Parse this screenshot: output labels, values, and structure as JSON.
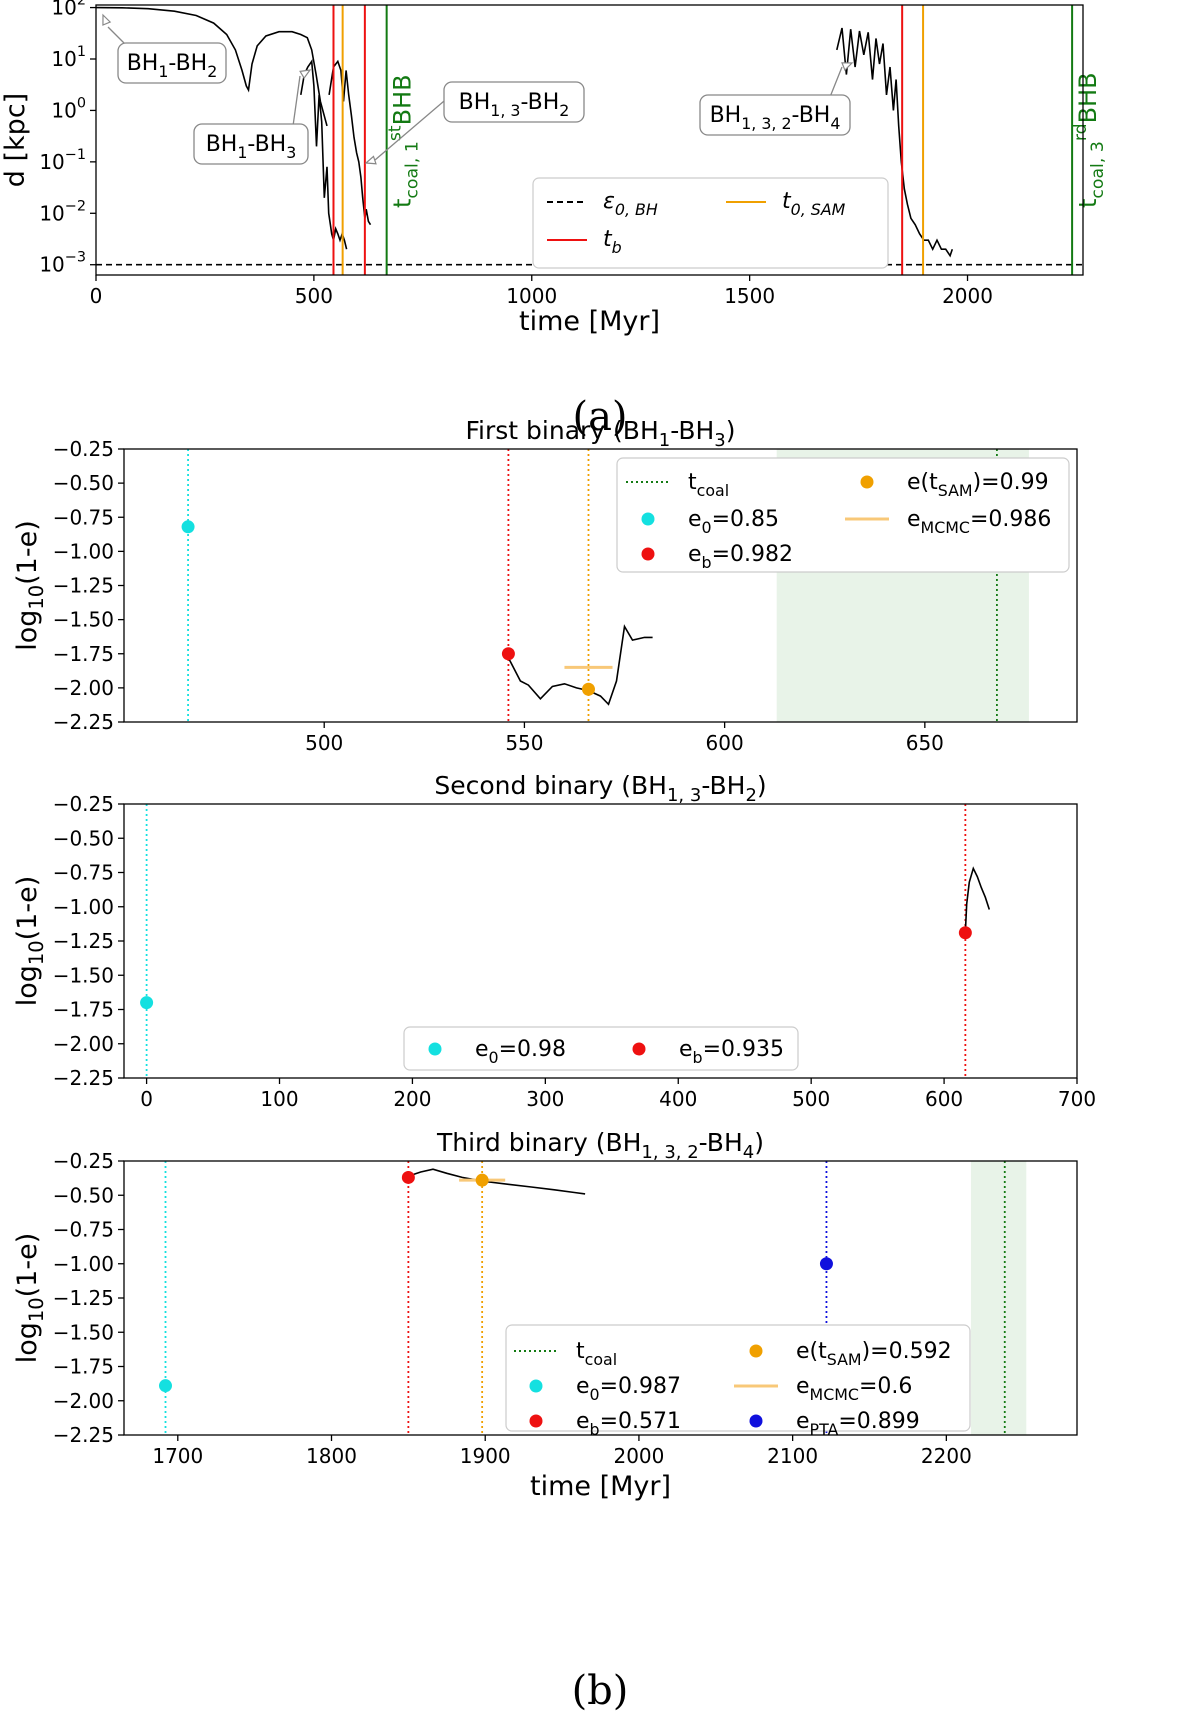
{
  "captions": [
    "(a)",
    "(b)"
  ],
  "colors": {
    "red": "#ee1111",
    "orange": "#f0a000",
    "green": "#137a13",
    "cyan": "#14e0e0",
    "blue": "#1010dd",
    "mcmc": "#f8c878",
    "shade": "#e8f3e8"
  },
  "chart_data": [
    {
      "id": "a",
      "type": "line",
      "yscale": "log",
      "xlabel": "time [Myr]",
      "ylabel": "d [kpc]",
      "xlim": [
        0,
        2265
      ],
      "ylim_exp": [
        -3.2,
        2.05
      ],
      "xticks": [
        0,
        500,
        1000,
        1500,
        2000
      ],
      "yticks_exp": [
        -3,
        -2,
        -1,
        0,
        1,
        2
      ],
      "ytick_labels": [
        "10",
        "10",
        "10",
        "10",
        "10",
        "10"
      ],
      "ytick_sups": [
        "−3",
        "−2",
        "−1",
        "0",
        "1",
        "2"
      ],
      "softening_kpc": 0.001,
      "tb": [
        545,
        617,
        1850
      ],
      "t0_sam": [
        566,
        1898
      ],
      "tcoal": [
        667,
        2240
      ],
      "tcoal_labels": [
        "t",
        "t"
      ],
      "tcoal_label_subs": [
        "coal, 1",
        "coal, 3"
      ],
      "tcoal_label_sups": [
        "st",
        "rd"
      ],
      "tcoal_label_tail": [
        "BHB",
        "BHB"
      ],
      "series": [
        {
          "name": "BH1-BH2",
          "x": [
            0,
            60,
            120,
            180,
            230,
            270,
            300,
            320,
            335,
            345,
            350,
            358,
            370,
            390,
            420,
            450,
            470,
            485,
            495,
            505,
            515,
            530
          ],
          "y": [
            100,
            99,
            95,
            85,
            70,
            50,
            30,
            15,
            6,
            3,
            2.5,
            8,
            18,
            28,
            34,
            34,
            30,
            26,
            15,
            5,
            1.5,
            0.5
          ]
        },
        {
          "name": "BH1-BH3",
          "x": [
            470,
            478,
            486,
            495,
            500,
            506,
            512,
            518,
            524,
            530,
            534,
            538,
            541,
            545,
            550,
            555,
            560,
            565,
            570,
            575
          ],
          "y": [
            2,
            5,
            7,
            9,
            3,
            0.2,
            2,
            0.6,
            0.02,
            0.08,
            0.01,
            0.006,
            0.004,
            0.003,
            0.005,
            0.004,
            0.003,
            0.004,
            0.003,
            0.002
          ]
        },
        {
          "name": "BH1,3-BH2",
          "x": [
            535,
            545,
            555,
            562,
            568,
            574,
            580,
            586,
            592,
            598,
            603,
            608,
            612,
            617,
            620,
            625,
            630
          ],
          "y": [
            2,
            7,
            9,
            6,
            1.5,
            6,
            2,
            0.8,
            0.3,
            0.15,
            0.1,
            0.05,
            0.02,
            0.008,
            0.012,
            0.007,
            0.006
          ]
        },
        {
          "name": "BH1,3,2-BH4",
          "x": [
            1700,
            1712,
            1722,
            1732,
            1742,
            1752,
            1762,
            1772,
            1782,
            1790,
            1798,
            1806,
            1814,
            1822,
            1830,
            1836,
            1842,
            1848,
            1855,
            1862,
            1870,
            1880,
            1890,
            1900,
            1910,
            1920,
            1930,
            1940,
            1950,
            1960,
            1965
          ],
          "y": [
            15,
            40,
            5,
            38,
            7,
            35,
            12,
            33,
            4,
            25,
            8,
            20,
            2,
            7,
            1,
            4,
            0.5,
            0.1,
            0.03,
            0.015,
            0.008,
            0.006,
            0.004,
            0.003,
            0.003,
            0.002,
            0.003,
            0.002,
            0.002,
            0.0015,
            0.002
          ]
        }
      ],
      "annotations": [
        "BH",
        "BH",
        "BH",
        "BH"
      ],
      "annotation_labels": [
        {
          "a": "BH",
          "as": "1",
          "b": "-BH",
          "bs": "2"
        },
        {
          "a": "BH",
          "as": "1",
          "b": "-BH",
          "bs": "3"
        },
        {
          "a": "BH",
          "as": "1, 3",
          "b": "-BH",
          "bs": "2"
        },
        {
          "a": "BH",
          "as": "1, 3, 2",
          "b": "-BH",
          "bs": "4"
        }
      ],
      "legend": [
        {
          "label": "ε",
          "sub": "0, BH",
          "style": "dashed-black"
        },
        {
          "label": "t",
          "sub": "b",
          "style": "red"
        },
        {
          "label": "t",
          "sub": "0, SAM",
          "style": "orange"
        }
      ]
    },
    {
      "id": "b1",
      "type": "line",
      "title": "First binary (BH",
      "title_sub1": "1",
      "title_mid": "-BH",
      "title_sub2": "3",
      "title_end": ")",
      "ylabel": "log",
      "ylabel_sub": "10",
      "ylabel_tail": "(1-e)",
      "xlim": [
        450,
        688
      ],
      "ylim": [
        -2.25,
        -0.25
      ],
      "xticks": [
        500,
        550,
        600,
        650
      ],
      "yticks": [
        -0.25,
        -0.5,
        -0.75,
        -1.0,
        -1.25,
        -1.5,
        -1.75,
        -2.0,
        -2.25
      ],
      "ytick_labels": [
        "−0.25",
        "−0.50",
        "−0.75",
        "−1.00",
        "−1.25",
        "−1.50",
        "−1.75",
        "−2.00",
        "−2.25"
      ],
      "curve": {
        "x": [
          546,
          549,
          551,
          554,
          557,
          560,
          563,
          566,
          569,
          571,
          573,
          575,
          577,
          580,
          582
        ],
        "y": [
          -1.78,
          -1.95,
          -1.98,
          -2.08,
          -1.99,
          -1.97,
          -2.0,
          -2.02,
          -2.06,
          -2.12,
          -1.95,
          -1.55,
          -1.65,
          -1.63,
          -1.63
        ]
      },
      "e0": {
        "t": 466,
        "value": -0.82
      },
      "eb": {
        "t": 546,
        "value": -1.75
      },
      "esam": {
        "t": 566,
        "value": -2.01
      },
      "mcmc": {
        "t1": 560,
        "t2": 572,
        "value": -1.85
      },
      "tcoal": 668,
      "shade": [
        613,
        676
      ],
      "legend": [
        {
          "label": "t",
          "sub": "coal",
          "tail": "",
          "style": "green-dotted"
        },
        {
          "label": "e",
          "sub": "0",
          "tail": "=0.85",
          "style": "cyan"
        },
        {
          "label": "e",
          "sub": "b",
          "tail": "=0.982",
          "style": "red"
        },
        {
          "label": "e(t",
          "sub": "SAM",
          "tail": ")=0.99",
          "style": "orange"
        },
        {
          "label": "e",
          "sub": "MCMC",
          "tail": "=0.986",
          "style": "mcmc"
        }
      ]
    },
    {
      "id": "b2",
      "type": "line",
      "title": "Second binary (BH",
      "title_sub1": "1, 3",
      "title_mid": "-BH",
      "title_sub2": "2",
      "title_end": ")",
      "ylabel": "log",
      "ylabel_sub": "10",
      "ylabel_tail": "(1-e)",
      "xlim": [
        -17,
        700
      ],
      "ylim": [
        -2.25,
        -0.25
      ],
      "xticks": [
        0,
        100,
        200,
        300,
        400,
        500,
        600,
        700
      ],
      "yticks": [
        -0.25,
        -0.5,
        -0.75,
        -1.0,
        -1.25,
        -1.5,
        -1.75,
        -2.0,
        -2.25
      ],
      "ytick_labels": [
        "−0.25",
        "−0.50",
        "−0.75",
        "−1.00",
        "−1.25",
        "−1.50",
        "−1.75",
        "−2.00",
        "−2.25"
      ],
      "curve": {
        "x": [
          616,
          617,
          619,
          622,
          625,
          628,
          631,
          634
        ],
        "y": [
          -1.18,
          -0.98,
          -0.82,
          -0.72,
          -0.78,
          -0.86,
          -0.93,
          -1.02
        ]
      },
      "e0": {
        "t": 0,
        "value": -1.7
      },
      "eb": {
        "t": 616,
        "value": -1.19
      },
      "legend": [
        {
          "label": "e",
          "sub": "0",
          "tail": "=0.98",
          "style": "cyan"
        },
        {
          "label": "e",
          "sub": "b",
          "tail": "=0.935",
          "style": "red"
        }
      ]
    },
    {
      "id": "b3",
      "type": "line",
      "title": "Third binary (BH",
      "title_sub1": "1, 3, 2",
      "title_mid": "-BH",
      "title_sub2": "4",
      "title_end": ")",
      "xlabel": "time [Myr]",
      "ylabel": "log",
      "ylabel_sub": "10",
      "ylabel_tail": "(1-e)",
      "xlim": [
        1665,
        2285
      ],
      "ylim": [
        -2.25,
        -0.25
      ],
      "xticks": [
        1700,
        1800,
        1900,
        2000,
        2100,
        2200
      ],
      "yticks": [
        -0.25,
        -0.5,
        -0.75,
        -1.0,
        -1.25,
        -1.5,
        -1.75,
        -2.0,
        -2.25
      ],
      "ytick_labels": [
        "−0.25",
        "−0.50",
        "−0.75",
        "−1.00",
        "−1.25",
        "−1.50",
        "−1.75",
        "−2.00",
        "−2.25"
      ],
      "curve": {
        "x": [
          1850,
          1858,
          1866,
          1875,
          1885,
          1900,
          1915,
          1930,
          1945,
          1958,
          1965
        ],
        "y": [
          -0.36,
          -0.33,
          -0.31,
          -0.34,
          -0.37,
          -0.4,
          -0.42,
          -0.44,
          -0.46,
          -0.48,
          -0.49
        ]
      },
      "e0": {
        "t": 1692,
        "value": -1.89
      },
      "eb": {
        "t": 1850,
        "value": -0.37
      },
      "esam": {
        "t": 1898,
        "value": -0.39
      },
      "mcmc": {
        "t1": 1883,
        "t2": 1913,
        "value": -0.39
      },
      "epta": {
        "t": 2122,
        "value": -1.0
      },
      "tcoal": 2238,
      "shade": [
        2216,
        2252
      ],
      "legend": [
        {
          "label": "t",
          "sub": "coal",
          "tail": "",
          "style": "green-dotted"
        },
        {
          "label": "e",
          "sub": "0",
          "tail": "=0.987",
          "style": "cyan"
        },
        {
          "label": "e",
          "sub": "b",
          "tail": "=0.571",
          "style": "red"
        },
        {
          "label": "e(t",
          "sub": "SAM",
          "tail": ")=0.592",
          "style": "orange"
        },
        {
          "label": "e",
          "sub": "MCMC",
          "tail": "=0.6",
          "style": "mcmc"
        },
        {
          "label": "e",
          "sub": "PTA",
          "tail": "=0.899",
          "style": "blue"
        }
      ]
    }
  ]
}
